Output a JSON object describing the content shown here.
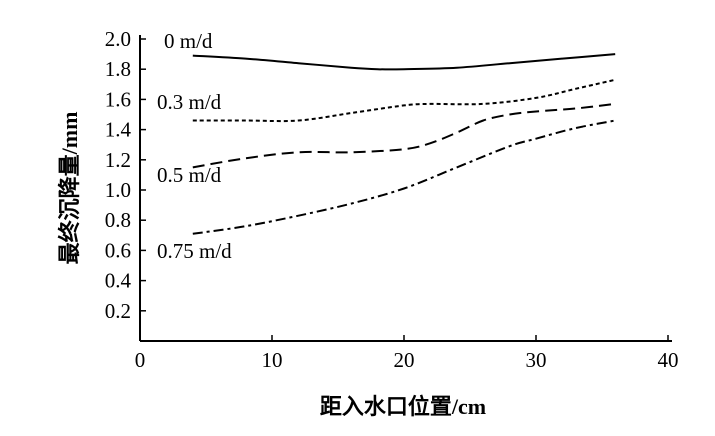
{
  "chart_data": {
    "type": "line",
    "title": "",
    "xlabel": "距入水口位置/cm",
    "ylabel": "最终沉降量/mm",
    "xlim": [
      0,
      40
    ],
    "ylim": [
      0,
      2.0
    ],
    "x_ticks": [
      "0",
      "10",
      "20",
      "30",
      "40"
    ],
    "y_ticks": [
      "0.2",
      "0.4",
      "0.6",
      "0.8",
      "1.0",
      "1.2",
      "1.4",
      "1.6",
      "1.8",
      "2.0"
    ],
    "grid": false,
    "legend": "inline labels",
    "series": [
      {
        "name": "0 m/d",
        "style": "solid",
        "x": [
          4,
          8,
          12,
          16,
          18,
          20,
          24,
          28,
          32,
          36
        ],
        "y": [
          1.89,
          1.87,
          1.84,
          1.81,
          1.8,
          1.8,
          1.81,
          1.84,
          1.87,
          1.9
        ]
      },
      {
        "name": "0.3 m/d",
        "style": "dotted",
        "x": [
          4,
          8,
          12,
          16,
          20,
          22,
          26,
          30,
          33,
          36
        ],
        "y": [
          1.46,
          1.46,
          1.46,
          1.51,
          1.56,
          1.57,
          1.57,
          1.61,
          1.67,
          1.73
        ]
      },
      {
        "name": "0.5 m/d",
        "style": "dashed",
        "x": [
          4,
          8,
          12,
          16,
          20,
          22,
          24,
          26,
          28,
          30,
          33,
          36
        ],
        "y": [
          1.15,
          1.21,
          1.25,
          1.25,
          1.27,
          1.31,
          1.38,
          1.46,
          1.5,
          1.52,
          1.54,
          1.57
        ]
      },
      {
        "name": "0.75 m/d",
        "style": "dashdot",
        "x": [
          4,
          8,
          12,
          16,
          20,
          24,
          28,
          30,
          33,
          36
        ],
        "y": [
          0.71,
          0.76,
          0.83,
          0.91,
          1.01,
          1.15,
          1.29,
          1.34,
          1.41,
          1.46
        ]
      }
    ]
  }
}
